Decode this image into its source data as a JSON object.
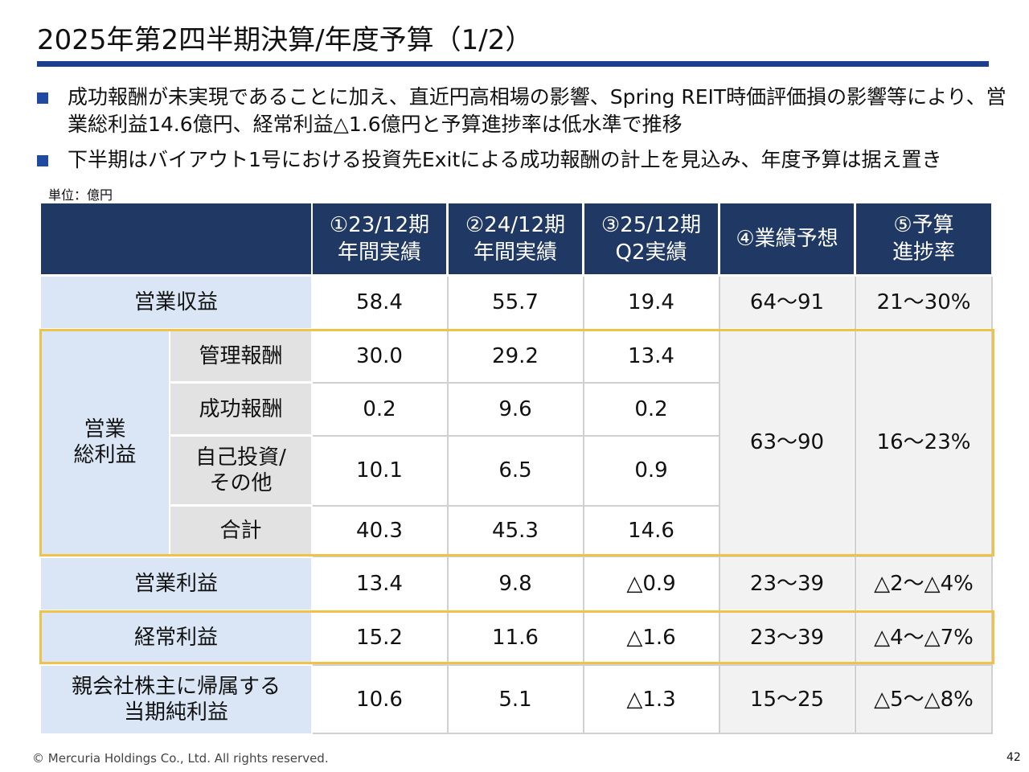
{
  "title": "2025年第2四半期決算/年度予算（1/2）",
  "bullets": [
    "成功報酬が未実現であることに加え、直近円高相場の影響、Spring REIT時価評価損の影響等により、営業総利益14.6億円、経常利益△1.6億円と予算進捗率は低水準で推移",
    "下半期はバイアウト1号における投資先Exitによる成功報酬の計上を見込み、年度予算は据え置き"
  ],
  "unit": "単位：億円",
  "table": {
    "headers": [
      "①23/12期\n年間実績",
      "②24/12期\n年間実績",
      "③25/12期\nQ2実績",
      "④業績予想",
      "⑤予算\n進捗率"
    ],
    "operating_revenue": {
      "label": "営業収益",
      "values": [
        "58.4",
        "55.7",
        "19.4",
        "64〜91",
        "21〜30%"
      ]
    },
    "gross_profit": {
      "label": "営業\n総利益",
      "forecast": "63〜90",
      "progress": "16〜23%",
      "rows": [
        {
          "label": "管理報酬",
          "values": [
            "30.0",
            "29.2",
            "13.4"
          ]
        },
        {
          "label": "成功報酬",
          "values": [
            "0.2",
            "9.6",
            "0.2"
          ]
        },
        {
          "label": "自己投資/\nその他",
          "values": [
            "10.1",
            "6.5",
            "0.9"
          ]
        },
        {
          "label": "合計",
          "values": [
            "40.3",
            "45.3",
            "14.6"
          ]
        }
      ]
    },
    "operating_income": {
      "label": "営業利益",
      "values": [
        "13.4",
        "9.8",
        "△0.9",
        "23〜39",
        "△2〜△4%"
      ]
    },
    "ordinary_income": {
      "label": "経常利益",
      "values": [
        "15.2",
        "11.6",
        "△1.6",
        "23〜39",
        "△4〜△7%"
      ]
    },
    "net_income": {
      "label": "親会社株主に帰属する\n当期純利益",
      "values": [
        "10.6",
        "5.1",
        "△1.3",
        "15〜25",
        "△5〜△8%"
      ]
    }
  },
  "colors": {
    "header_bg": "#203864",
    "label_bg": "#dae6f5",
    "sublabel_bg": "#e2e2e2",
    "highlight_border": "#f0c24a",
    "title_rule": "#1b3f8f"
  },
  "footer": "© Mercuria Holdings Co., Ltd. All rights reserved.",
  "page_number": "42"
}
